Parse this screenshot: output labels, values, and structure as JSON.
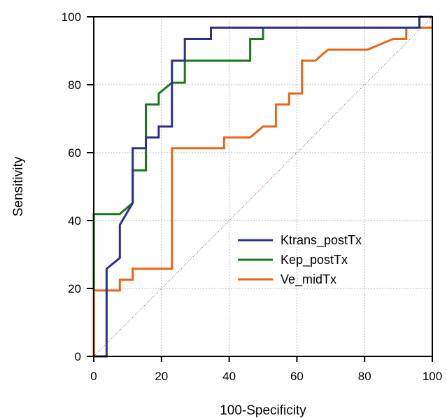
{
  "chart_data": {
    "type": "line",
    "title": "",
    "xlabel": "100-Specificity",
    "ylabel": "Sensitivity",
    "xlim": [
      0,
      100
    ],
    "ylim": [
      0,
      100
    ],
    "xticks": [
      "0",
      "20",
      "40",
      "60",
      "80",
      "100"
    ],
    "yticks": [
      "0",
      "20",
      "40",
      "60",
      "80",
      "100"
    ],
    "grid": true,
    "legend_position": "lower-right",
    "reference_line": {
      "color": "#c0504d",
      "points": [
        [
          0,
          0
        ],
        [
          100,
          100
        ]
      ]
    },
    "series": [
      {
        "name": "Ktrans_postTx",
        "color": "#2b2f8f",
        "points": [
          [
            0,
            0
          ],
          [
            3.8,
            0
          ],
          [
            3.8,
            25.8
          ],
          [
            7.7,
            29
          ],
          [
            7.7,
            38.7
          ],
          [
            11.5,
            45.2
          ],
          [
            11.5,
            61.3
          ],
          [
            15.4,
            61.3
          ],
          [
            15.4,
            64.5
          ],
          [
            19.2,
            64.5
          ],
          [
            19.2,
            67.7
          ],
          [
            23.1,
            67.7
          ],
          [
            23.1,
            87.1
          ],
          [
            26.9,
            87.1
          ],
          [
            26.9,
            93.5
          ],
          [
            34.6,
            93.5
          ],
          [
            34.6,
            96.8
          ],
          [
            50,
            96.8
          ],
          [
            50,
            96.8
          ],
          [
            96.2,
            96.8
          ],
          [
            96.2,
            100
          ],
          [
            100,
            100
          ]
        ]
      },
      {
        "name": "Kep_postTx",
        "color": "#1a7a1a",
        "points": [
          [
            0,
            19.4
          ],
          [
            0,
            41.9
          ],
          [
            7.7,
            41.9
          ],
          [
            11.5,
            45.2
          ],
          [
            11.5,
            54.8
          ],
          [
            15.4,
            54.8
          ],
          [
            15.4,
            74.2
          ],
          [
            19.2,
            74.2
          ],
          [
            19.2,
            77.4
          ],
          [
            23.1,
            80.6
          ],
          [
            26.9,
            80.6
          ],
          [
            26.9,
            87.1
          ],
          [
            46.2,
            87.1
          ],
          [
            46.2,
            93.5
          ],
          [
            50,
            93.5
          ],
          [
            50,
            96.8
          ],
          [
            96.2,
            96.8
          ],
          [
            96.2,
            100
          ],
          [
            100,
            100
          ]
        ]
      },
      {
        "name": "Ve_midTx",
        "color": "#e8651a",
        "points": [
          [
            0,
            0
          ],
          [
            0,
            19.4
          ],
          [
            7.7,
            19.4
          ],
          [
            7.7,
            22.6
          ],
          [
            11.5,
            22.6
          ],
          [
            11.5,
            25.8
          ],
          [
            23.1,
            25.8
          ],
          [
            23.1,
            61.3
          ],
          [
            38.5,
            61.3
          ],
          [
            38.5,
            64.5
          ],
          [
            46.2,
            64.5
          ],
          [
            50,
            67.7
          ],
          [
            53.8,
            67.7
          ],
          [
            53.8,
            74.2
          ],
          [
            57.7,
            74.2
          ],
          [
            57.7,
            77.4
          ],
          [
            61.5,
            77.4
          ],
          [
            61.5,
            87.1
          ],
          [
            65.4,
            87.1
          ],
          [
            69.2,
            90.3
          ],
          [
            80.8,
            90.3
          ],
          [
            88.5,
            93.5
          ],
          [
            92.3,
            93.5
          ],
          [
            92.3,
            96.8
          ],
          [
            96.2,
            96.8
          ],
          [
            100,
            96.8
          ]
        ]
      }
    ]
  }
}
